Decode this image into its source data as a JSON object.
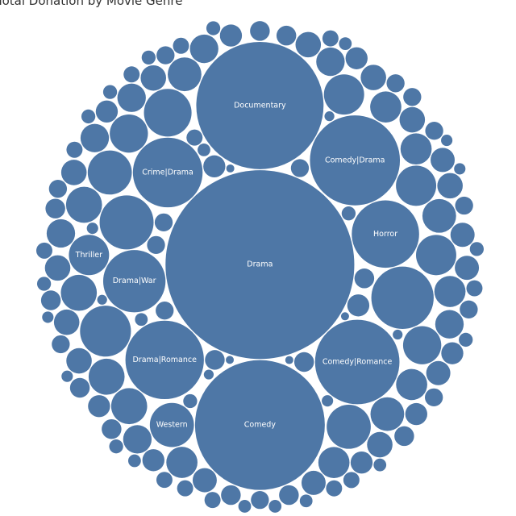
{
  "chart_data": {
    "type": "bubble",
    "title": "Total Donation by Movie Genre",
    "color": "#4e77a6",
    "categories": [
      "Drama",
      "Comedy",
      "Documentary",
      "Comedy|Drama",
      "Comedy|Romance",
      "Drama|Romance",
      "Crime|Drama",
      "Horror",
      "Drama|War",
      "Western",
      "Thriller",
      null,
      null,
      null,
      null,
      null,
      null,
      null,
      null,
      null,
      null,
      null,
      null,
      null,
      null,
      null,
      null,
      null,
      null,
      null,
      null,
      null,
      null,
      null,
      null,
      null,
      null,
      null,
      null,
      null,
      null,
      null,
      null,
      null,
      null,
      null,
      null,
      null,
      null,
      null,
      null,
      null,
      null,
      null,
      null,
      null,
      null,
      null,
      null,
      null,
      null,
      null,
      null,
      null,
      null,
      null,
      null,
      null,
      null,
      null,
      null,
      null,
      null,
      null,
      null,
      null,
      null,
      null,
      null,
      null,
      null,
      null,
      null,
      null,
      null,
      null,
      null,
      null,
      null,
      null,
      null,
      null,
      null,
      null,
      null,
      null,
      null,
      null,
      null,
      null,
      null,
      null,
      null,
      null,
      null,
      null,
      null,
      null,
      null,
      null,
      null,
      null,
      null,
      null,
      null,
      null,
      null,
      null,
      null,
      null,
      null,
      null,
      null,
      null,
      null,
      null,
      null,
      null,
      null,
      null,
      null,
      null,
      null,
      null,
      null,
      null,
      null,
      null
    ],
    "values": [
      110,
      52,
      50,
      25,
      22,
      19,
      15,
      14,
      12,
      6,
      5,
      12,
      9,
      8,
      7,
      6,
      6,
      5,
      5,
      5,
      4.5,
      4.5,
      4,
      4,
      4,
      4,
      3.5,
      3.5,
      3.5,
      3,
      3,
      3,
      3,
      3,
      3,
      2.5,
      2.5,
      2.5,
      2.5,
      2.5,
      2.5,
      2.5,
      2,
      2,
      2,
      2,
      2,
      2,
      2,
      2,
      2,
      2,
      1.8,
      1.8,
      1.8,
      1.8,
      1.8,
      1.8,
      1.5,
      1.5,
      1.5,
      1.5,
      1.5,
      1.5,
      1.5,
      1.5,
      1.5,
      1.5,
      1.2,
      1.2,
      1.2,
      1.2,
      1.2,
      1.2,
      1.2,
      1.2,
      1.2,
      1.2,
      1.2,
      1.2,
      1,
      1,
      1,
      1,
      1,
      1,
      1,
      1,
      1,
      1,
      1,
      1,
      1,
      1,
      0.8,
      0.8,
      0.8,
      0.8,
      0.8,
      0.8,
      0.8,
      0.8,
      0.8,
      0.8,
      0.8,
      0.8,
      0.6,
      0.6,
      0.6,
      0.6,
      0.6,
      0.6,
      0.6,
      0.6,
      0.6,
      0.6,
      0.5,
      0.5,
      0.5,
      0.5,
      0.5,
      0.5,
      0.5,
      0.5,
      0.4,
      0.4,
      0.4,
      0.4,
      0.4,
      0.4,
      0.3,
      0.3,
      0.3,
      0.3,
      0.2,
      0.2,
      0.2,
      0.2
    ]
  }
}
